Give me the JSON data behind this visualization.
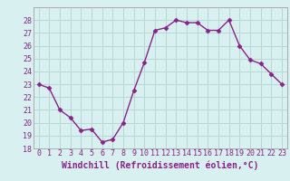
{
  "x": [
    0,
    1,
    2,
    3,
    4,
    5,
    6,
    7,
    8,
    9,
    10,
    11,
    12,
    13,
    14,
    15,
    16,
    17,
    18,
    19,
    20,
    21,
    22,
    23
  ],
  "y": [
    23.0,
    22.7,
    21.0,
    20.4,
    19.4,
    19.5,
    18.5,
    18.7,
    20.0,
    22.5,
    24.7,
    27.2,
    27.4,
    28.0,
    27.8,
    27.8,
    27.2,
    27.2,
    28.0,
    26.0,
    24.9,
    24.6,
    23.8,
    23.0
  ],
  "line_color": "#882288",
  "marker": "D",
  "markersize": 2.5,
  "linewidth": 1.0,
  "background_color": "#d8f0f0",
  "grid_color": "#b8d8d8",
  "xlabel": "Windchill (Refroidissement éolien,°C)",
  "xlabel_fontsize": 7,
  "tick_fontsize": 6,
  "ylim": [
    18,
    29
  ],
  "yticks": [
    18,
    19,
    20,
    21,
    22,
    23,
    24,
    25,
    26,
    27,
    28
  ],
  "xticks": [
    0,
    1,
    2,
    3,
    4,
    5,
    6,
    7,
    8,
    9,
    10,
    11,
    12,
    13,
    14,
    15,
    16,
    17,
    18,
    19,
    20,
    21,
    22,
    23
  ]
}
